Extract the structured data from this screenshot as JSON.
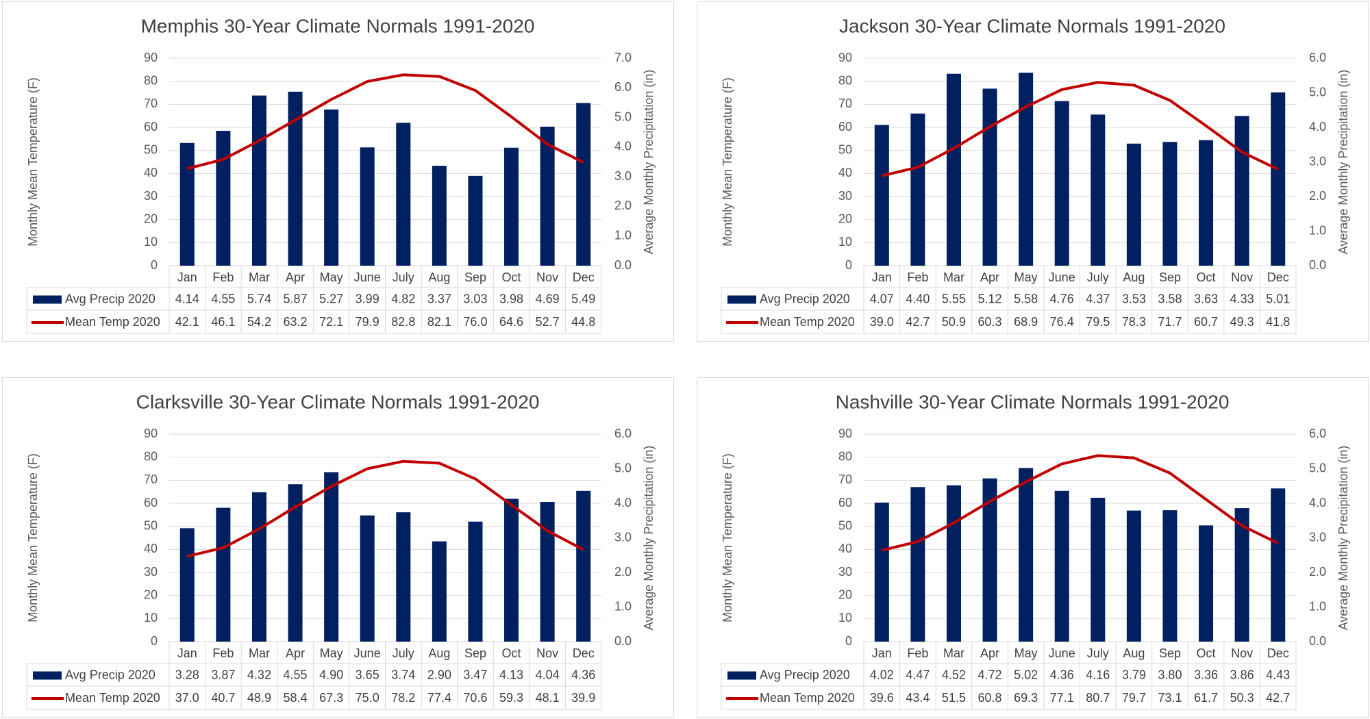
{
  "chart_data": [
    {
      "type": "combo",
      "title": "Memphis 30-Year Climate Normals 1991-2020",
      "categories": [
        "Jan",
        "Feb",
        "Mar",
        "Apr",
        "May",
        "June",
        "July",
        "Aug",
        "Sep",
        "Oct",
        "Nov",
        "Dec"
      ],
      "y_label": "Monthly Mean Temperature  (F)",
      "y2_label": "Average Monthly Precipitation (in)",
      "ylim": [
        0,
        90
      ],
      "yticks": [
        0,
        10,
        20,
        30,
        40,
        50,
        60,
        70,
        80,
        90
      ],
      "y2lim": [
        0,
        7
      ],
      "y2ticks": [
        {
          "value": 0,
          "label": "0.0"
        },
        {
          "value": 1,
          "label": "1.0"
        },
        {
          "value": 2,
          "label": "2.0"
        },
        {
          "value": 3,
          "label": "3.0"
        },
        {
          "value": 4,
          "label": "4.0"
        },
        {
          "value": 5,
          "label": "5.0"
        },
        {
          "value": 6,
          "label": "6.0"
        },
        {
          "value": 7,
          "label": "7.0"
        }
      ],
      "grid": true,
      "series": [
        {
          "name": "Avg Precip 2020",
          "color": "#002060",
          "type": "bar",
          "axis": "y2",
          "values": [
            4.14,
            4.55,
            5.74,
            5.87,
            5.27,
            3.99,
            4.82,
            3.37,
            3.03,
            3.98,
            4.69,
            5.49
          ],
          "value_labels": [
            "4.14",
            "4.55",
            "5.74",
            "5.87",
            "5.27",
            "3.99",
            "4.82",
            "3.37",
            "3.03",
            "3.98",
            "4.69",
            "5.49"
          ]
        },
        {
          "name": "Mean Temp 2020",
          "color": "#c00000",
          "type": "line",
          "axis": "y",
          "values": [
            42.1,
            46.1,
            54.2,
            63.2,
            72.1,
            79.9,
            82.8,
            82.1,
            76.0,
            64.6,
            52.7,
            44.8
          ],
          "value_labels": [
            "42.1",
            "46.1",
            "54.2",
            "63.2",
            "72.1",
            "79.9",
            "82.8",
            "82.1",
            "76.0",
            "64.6",
            "52.7",
            "44.8"
          ]
        }
      ]
    },
    {
      "type": "combo",
      "title": "Jackson 30-Year Climate Normals 1991-2020",
      "categories": [
        "Jan",
        "Feb",
        "Mar",
        "Apr",
        "May",
        "June",
        "July",
        "Aug",
        "Sep",
        "Oct",
        "Nov",
        "Dec"
      ],
      "y_label": "Monthly Mean Temperature  (F)",
      "y2_label": "Average Monthly Precipitation (in)",
      "ylim": [
        0,
        90
      ],
      "yticks": [
        0,
        10,
        20,
        30,
        40,
        50,
        60,
        70,
        80,
        90
      ],
      "y2lim": [
        0,
        6
      ],
      "y2ticks": [
        {
          "value": 0,
          "label": "0.0"
        },
        {
          "value": 1,
          "label": "1.0"
        },
        {
          "value": 2,
          "label": "2.0"
        },
        {
          "value": 3,
          "label": "3.0"
        },
        {
          "value": 4,
          "label": "4.0"
        },
        {
          "value": 5,
          "label": "5.0"
        },
        {
          "value": 6,
          "label": "6.0"
        }
      ],
      "grid": true,
      "series": [
        {
          "name": "Avg Precip 2020",
          "color": "#002060",
          "type": "bar",
          "axis": "y2",
          "values": [
            4.07,
            4.4,
            5.55,
            5.12,
            5.58,
            4.76,
            4.37,
            3.53,
            3.58,
            3.63,
            4.33,
            5.01
          ],
          "value_labels": [
            "4.07",
            "4.40",
            "5.55",
            "5.12",
            "5.58",
            "4.76",
            "4.37",
            "3.53",
            "3.58",
            "3.63",
            "4.33",
            "5.01"
          ]
        },
        {
          "name": "Mean Temp 2020",
          "color": "#c00000",
          "type": "line",
          "axis": "y",
          "values": [
            39.0,
            42.7,
            50.9,
            60.3,
            68.9,
            76.4,
            79.5,
            78.3,
            71.7,
            60.7,
            49.3,
            41.8
          ],
          "value_labels": [
            "39.0",
            "42.7",
            "50.9",
            "60.3",
            "68.9",
            "76.4",
            "79.5",
            "78.3",
            "71.7",
            "60.7",
            "49.3",
            "41.8"
          ]
        }
      ]
    },
    {
      "type": "combo",
      "title": "Clarksville 30-Year Climate Normals 1991-2020",
      "categories": [
        "Jan",
        "Feb",
        "Mar",
        "Apr",
        "May",
        "June",
        "July",
        "Aug",
        "Sep",
        "Oct",
        "Nov",
        "Dec"
      ],
      "y_label": "Monthly Mean Temperature  (F)",
      "y2_label": "Average Monthly Precipitation (in)",
      "ylim": [
        0,
        90
      ],
      "yticks": [
        0,
        10,
        20,
        30,
        40,
        50,
        60,
        70,
        80,
        90
      ],
      "y2lim": [
        0,
        6
      ],
      "y2ticks": [
        {
          "value": 0,
          "label": "0.0"
        },
        {
          "value": 1,
          "label": "1.0"
        },
        {
          "value": 2,
          "label": "2.0"
        },
        {
          "value": 3,
          "label": "3.0"
        },
        {
          "value": 4,
          "label": "4.0"
        },
        {
          "value": 5,
          "label": "5.0"
        },
        {
          "value": 6,
          "label": "6.0"
        }
      ],
      "grid": true,
      "series": [
        {
          "name": "Avg Precip 2020",
          "color": "#002060",
          "type": "bar",
          "axis": "y2",
          "values": [
            3.28,
            3.87,
            4.32,
            4.55,
            4.9,
            3.65,
            3.74,
            2.9,
            3.47,
            4.13,
            4.04,
            4.36
          ],
          "value_labels": [
            "3.28",
            "3.87",
            "4.32",
            "4.55",
            "4.90",
            "3.65",
            "3.74",
            "2.90",
            "3.47",
            "4.13",
            "4.04",
            "4.36"
          ]
        },
        {
          "name": "Mean Temp 2020",
          "color": "#c00000",
          "type": "line",
          "axis": "y",
          "values": [
            37.0,
            40.7,
            48.9,
            58.4,
            67.3,
            75.0,
            78.2,
            77.4,
            70.6,
            59.3,
            48.1,
            39.9
          ],
          "value_labels": [
            "37.0",
            "40.7",
            "48.9",
            "58.4",
            "67.3",
            "75.0",
            "78.2",
            "77.4",
            "70.6",
            "59.3",
            "48.1",
            "39.9"
          ]
        }
      ]
    },
    {
      "type": "combo",
      "title": "Nashville 30-Year Climate Normals 1991-2020",
      "categories": [
        "Jan",
        "Feb",
        "Mar",
        "Apr",
        "May",
        "June",
        "July",
        "Aug",
        "Sep",
        "Oct",
        "Nov",
        "Dec"
      ],
      "y_label": "Monthly Mean Temperature  (F)",
      "y2_label": "Average Monthly Precipitation (in)",
      "ylim": [
        0,
        90
      ],
      "yticks": [
        0,
        10,
        20,
        30,
        40,
        50,
        60,
        70,
        80,
        90
      ],
      "y2lim": [
        0,
        6
      ],
      "y2ticks": [
        {
          "value": 0,
          "label": "0.0"
        },
        {
          "value": 1,
          "label": "1.0"
        },
        {
          "value": 2,
          "label": "2.0"
        },
        {
          "value": 3,
          "label": "3.0"
        },
        {
          "value": 4,
          "label": "4.0"
        },
        {
          "value": 5,
          "label": "5.0"
        },
        {
          "value": 6,
          "label": "6.0"
        }
      ],
      "grid": true,
      "series": [
        {
          "name": "Avg Precip 2020",
          "color": "#002060",
          "type": "bar",
          "axis": "y2",
          "values": [
            4.02,
            4.47,
            4.52,
            4.72,
            5.02,
            4.36,
            4.16,
            3.79,
            3.8,
            3.36,
            3.86,
            4.43
          ],
          "value_labels": [
            "4.02",
            "4.47",
            "4.52",
            "4.72",
            "5.02",
            "4.36",
            "4.16",
            "3.79",
            "3.80",
            "3.36",
            "3.86",
            "4.43"
          ]
        },
        {
          "name": "Mean Temp 2020",
          "color": "#c00000",
          "type": "line",
          "axis": "y",
          "values": [
            39.6,
            43.4,
            51.5,
            60.8,
            69.3,
            77.1,
            80.7,
            79.7,
            73.1,
            61.7,
            50.3,
            42.7
          ],
          "value_labels": [
            "39.6",
            "43.4",
            "51.5",
            "60.8",
            "69.3",
            "77.1",
            "80.7",
            "79.7",
            "73.1",
            "61.7",
            "50.3",
            "42.7"
          ]
        }
      ]
    }
  ]
}
